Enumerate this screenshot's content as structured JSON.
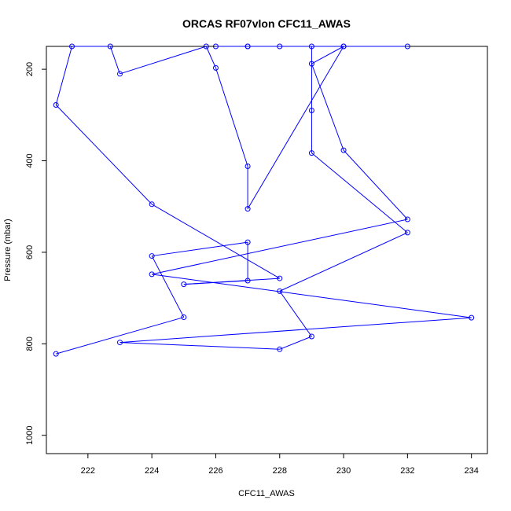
{
  "chart_data": {
    "type": "line",
    "title": "ORCAS RF07vlon CFC11_AWAS",
    "xlabel": "CFC11_AWAS",
    "ylabel": "Pressure (mbar)",
    "xlim": [
      220.7,
      234.5
    ],
    "ylim": [
      1040,
      150
    ],
    "y_inverted": true,
    "xticks": [
      222,
      224,
      226,
      228,
      230,
      232,
      234
    ],
    "yticks": [
      200,
      400,
      600,
      800,
      1000
    ],
    "grid": false,
    "legend": "none",
    "line_color": "#0000ff",
    "marker": "open-circle",
    "series": [
      {
        "points": [
          {
            "x": 221,
            "y": 822
          },
          {
            "x": 225,
            "y": 742
          },
          {
            "x": 224,
            "y": 608
          },
          {
            "x": 227,
            "y": 578
          },
          {
            "x": 227,
            "y": 662
          },
          {
            "x": 225,
            "y": 670
          },
          {
            "x": 228,
            "y": 657
          },
          {
            "x": 224,
            "y": 495
          },
          {
            "x": 221,
            "y": 278
          },
          {
            "x": 221.5,
            "y": 150
          },
          {
            "x": 222.7,
            "y": 150
          },
          {
            "x": 223,
            "y": 210
          },
          {
            "x": 225.7,
            "y": 150
          },
          {
            "x": 226,
            "y": 197
          },
          {
            "x": 227,
            "y": 412
          },
          {
            "x": 227,
            "y": 505
          },
          {
            "x": 230,
            "y": 150
          },
          {
            "x": 228,
            "y": 150
          },
          {
            "x": 227,
            "y": 150
          },
          {
            "x": 226,
            "y": 150
          },
          {
            "x": 227,
            "y": 150
          },
          {
            "x": 229,
            "y": 150
          },
          {
            "x": 229,
            "y": 290
          },
          {
            "x": 229,
            "y": 383
          },
          {
            "x": 232,
            "y": 557
          },
          {
            "x": 228,
            "y": 685
          },
          {
            "x": 229,
            "y": 784
          },
          {
            "x": 228,
            "y": 812
          },
          {
            "x": 223,
            "y": 797
          },
          {
            "x": 234,
            "y": 743
          },
          {
            "x": 224,
            "y": 648
          },
          {
            "x": 232,
            "y": 528
          },
          {
            "x": 230,
            "y": 377
          },
          {
            "x": 229,
            "y": 188
          },
          {
            "x": 230,
            "y": 150
          },
          {
            "x": 232,
            "y": 150
          }
        ]
      }
    ]
  }
}
